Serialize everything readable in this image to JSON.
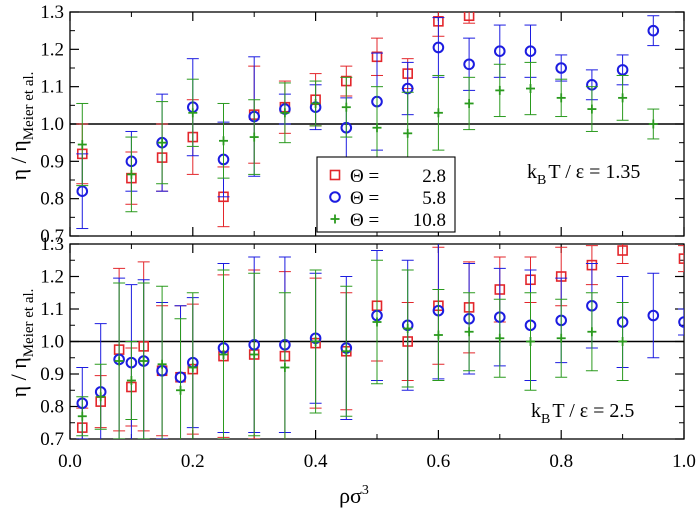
{
  "chart_data": {
    "type": "scatter",
    "xlabel": "ρσ",
    "xlabel_sup": "3",
    "ylabel_main": "η / η",
    "ylabel_sub": "Meier et al.",
    "xlim": [
      0.0,
      1.0
    ],
    "ylim": [
      0.7,
      1.3
    ],
    "x_ticks": [
      "0.0",
      "0.2",
      "0.4",
      "0.6",
      "0.8",
      "1.0"
    ],
    "y_ticks": [
      "0.7",
      "0.8",
      "0.9",
      "1.0",
      "1.1",
      "1.2",
      "1.3"
    ],
    "reference_line_y": 1.0,
    "legend": {
      "placement": "upper-panel-center-bottom",
      "entries": [
        {
          "symbol": "Θ",
          "value": "2.8",
          "color": "#e3262b",
          "marker": "square"
        },
        {
          "symbol": "Θ",
          "value": "5.8",
          "color": "#1c1ce0",
          "marker": "circle"
        },
        {
          "symbol": "Θ",
          "value": "10.8",
          "color": "#2a9a1e",
          "marker": "plus"
        }
      ]
    },
    "panels": [
      {
        "annotation_prefix": "k",
        "annotation_sub": "B",
        "annotation_suffix": "T / ε = 1.35",
        "series": [
          {
            "color": "#e3262b",
            "marker": "square",
            "points": [
              [
                0.02,
                0.92,
                0.08
              ],
              [
                0.1,
                0.855,
                0.07
              ],
              [
                0.15,
                0.91,
                0.09
              ],
              [
                0.2,
                0.965,
                0.1
              ],
              [
                0.25,
                0.805,
                0.08
              ],
              [
                0.3,
                1.025,
                0.13
              ],
              [
                0.35,
                1.045,
                0.07
              ],
              [
                0.4,
                1.065,
                0.07
              ],
              [
                0.45,
                1.115,
                0.04
              ],
              [
                0.5,
                1.18,
                0.05
              ],
              [
                0.55,
                1.135,
                0.04
              ],
              [
                0.6,
                1.275,
                0.04
              ],
              [
                0.65,
                1.29,
                0.02
              ]
            ]
          },
          {
            "color": "#1c1ce0",
            "marker": "circle",
            "points": [
              [
                0.02,
                0.82,
                0.1
              ],
              [
                0.1,
                0.9,
                0.08
              ],
              [
                0.15,
                0.95,
                0.13
              ],
              [
                0.2,
                1.045,
                0.13
              ],
              [
                0.25,
                0.905,
                0.1
              ],
              [
                0.3,
                1.02,
                0.16
              ],
              [
                0.35,
                1.04,
                0.04
              ],
              [
                0.4,
                1.045,
                0.06
              ],
              [
                0.45,
                0.99,
                0.08
              ],
              [
                0.5,
                1.06,
                0.13
              ],
              [
                0.55,
                1.095,
                0.07
              ],
              [
                0.6,
                1.205,
                0.08
              ],
              [
                0.65,
                1.16,
                0.07
              ],
              [
                0.7,
                1.195,
                0.07
              ],
              [
                0.75,
                1.195,
                0.07
              ],
              [
                0.8,
                1.15,
                0.035
              ],
              [
                0.85,
                1.105,
                0.04
              ],
              [
                0.9,
                1.145,
                0.04
              ],
              [
                0.95,
                1.25,
                0.04
              ]
            ]
          },
          {
            "color": "#2a9a1e",
            "marker": "plus",
            "points": [
              [
                0.02,
                0.945,
                0.11
              ],
              [
                0.1,
                0.865,
                0.1
              ],
              [
                0.15,
                0.95,
                0.11
              ],
              [
                0.2,
                1.03,
                0.09
              ],
              [
                0.25,
                0.955,
                0.1
              ],
              [
                0.3,
                0.965,
                0.1
              ],
              [
                0.35,
                1.03,
                0.08
              ],
              [
                0.4,
                1.055,
                0.06
              ],
              [
                0.45,
                1.045,
                0.08
              ],
              [
                0.5,
                0.99,
                0.11
              ],
              [
                0.55,
                0.975,
                0.11
              ],
              [
                0.6,
                1.03,
                0.1
              ],
              [
                0.65,
                1.055,
                0.07
              ],
              [
                0.7,
                1.09,
                0.07
              ],
              [
                0.75,
                1.095,
                0.07
              ],
              [
                0.8,
                1.07,
                0.05
              ],
              [
                0.85,
                1.04,
                0.06
              ],
              [
                0.9,
                1.07,
                0.06
              ],
              [
                0.95,
                1.0,
                0.04
              ]
            ]
          }
        ]
      },
      {
        "annotation_prefix": "k",
        "annotation_sub": "B",
        "annotation_suffix": "T / ε = 2.5",
        "series": [
          {
            "color": "#e3262b",
            "marker": "square",
            "points": [
              [
                0.02,
                0.735,
                0.06
              ],
              [
                0.05,
                0.815,
                0.08
              ],
              [
                0.08,
                0.975,
                0.25
              ],
              [
                0.1,
                0.86,
                0.12
              ],
              [
                0.12,
                0.985,
                0.26
              ],
              [
                0.15,
                0.91,
                0.2
              ],
              [
                0.18,
                0.89,
                0.22
              ],
              [
                0.2,
                0.915,
                0.2
              ],
              [
                0.25,
                0.955,
                0.25
              ],
              [
                0.3,
                0.96,
                0.26
              ],
              [
                0.35,
                0.955,
                0.26
              ],
              [
                0.4,
                0.995,
                0.2
              ],
              [
                0.45,
                0.97,
                0.18
              ],
              [
                0.5,
                1.11,
                0.17
              ],
              [
                0.55,
                1.0,
                0.12
              ],
              [
                0.6,
                1.11,
                0.18
              ],
              [
                0.65,
                1.105,
                0.14
              ],
              [
                0.7,
                1.16,
                0.1
              ],
              [
                0.75,
                1.19,
                0.07
              ],
              [
                0.8,
                1.2,
                0.09
              ],
              [
                0.85,
                1.235,
                0.06
              ],
              [
                0.9,
                1.28,
                0.04
              ],
              [
                1.0,
                1.255,
                0.04
              ]
            ]
          },
          {
            "color": "#1c1ce0",
            "marker": "circle",
            "points": [
              [
                0.02,
                0.81,
                0.11
              ],
              [
                0.05,
                0.845,
                0.21
              ],
              [
                0.08,
                0.945,
                0.25
              ],
              [
                0.1,
                0.935,
                0.24
              ],
              [
                0.12,
                0.94,
                0.25
              ],
              [
                0.15,
                0.91,
                0.21
              ],
              [
                0.18,
                0.89,
                0.22
              ],
              [
                0.2,
                0.935,
                0.2
              ],
              [
                0.25,
                0.98,
                0.26
              ],
              [
                0.3,
                0.99,
                0.27
              ],
              [
                0.35,
                0.99,
                0.27
              ],
              [
                0.4,
                1.01,
                0.2
              ],
              [
                0.45,
                0.98,
                0.22
              ],
              [
                0.5,
                1.08,
                0.2
              ],
              [
                0.55,
                1.05,
                0.2
              ],
              [
                0.6,
                1.095,
                0.21
              ],
              [
                0.65,
                1.07,
                0.17
              ],
              [
                0.7,
                1.075,
                0.15
              ],
              [
                0.75,
                1.05,
                0.17
              ],
              [
                0.8,
                1.065,
                0.13
              ],
              [
                0.85,
                1.11,
                0.13
              ],
              [
                0.9,
                1.06,
                0.14
              ],
              [
                0.95,
                1.08,
                0.13
              ],
              [
                1.0,
                1.06,
                0.04
              ]
            ]
          },
          {
            "color": "#2a9a1e",
            "marker": "plus",
            "points": [
              [
                0.02,
                0.77,
                0.06
              ],
              [
                0.05,
                0.83,
                0.1
              ],
              [
                0.08,
                0.94,
                0.24
              ],
              [
                0.1,
                0.88,
                0.12
              ],
              [
                0.12,
                0.94,
                0.24
              ],
              [
                0.15,
                0.93,
                0.24
              ],
              [
                0.18,
                0.85,
                0.22
              ],
              [
                0.2,
                0.92,
                0.23
              ],
              [
                0.25,
                0.96,
                0.26
              ],
              [
                0.3,
                0.96,
                0.25
              ],
              [
                0.35,
                0.92,
                0.23
              ],
              [
                0.4,
                1.0,
                0.22
              ],
              [
                0.45,
                0.97,
                0.2
              ],
              [
                0.5,
                1.06,
                0.19
              ],
              [
                0.55,
                1.04,
                0.18
              ],
              [
                0.6,
                1.02,
                0.14
              ],
              [
                0.65,
                1.03,
                0.12
              ],
              [
                0.7,
                1.01,
                0.12
              ],
              [
                0.75,
                1.0,
                0.15
              ],
              [
                0.8,
                1.01,
                0.12
              ],
              [
                0.85,
                1.03,
                0.12
              ],
              [
                0.9,
                1.0,
                0.12
              ]
            ]
          }
        ]
      }
    ]
  }
}
